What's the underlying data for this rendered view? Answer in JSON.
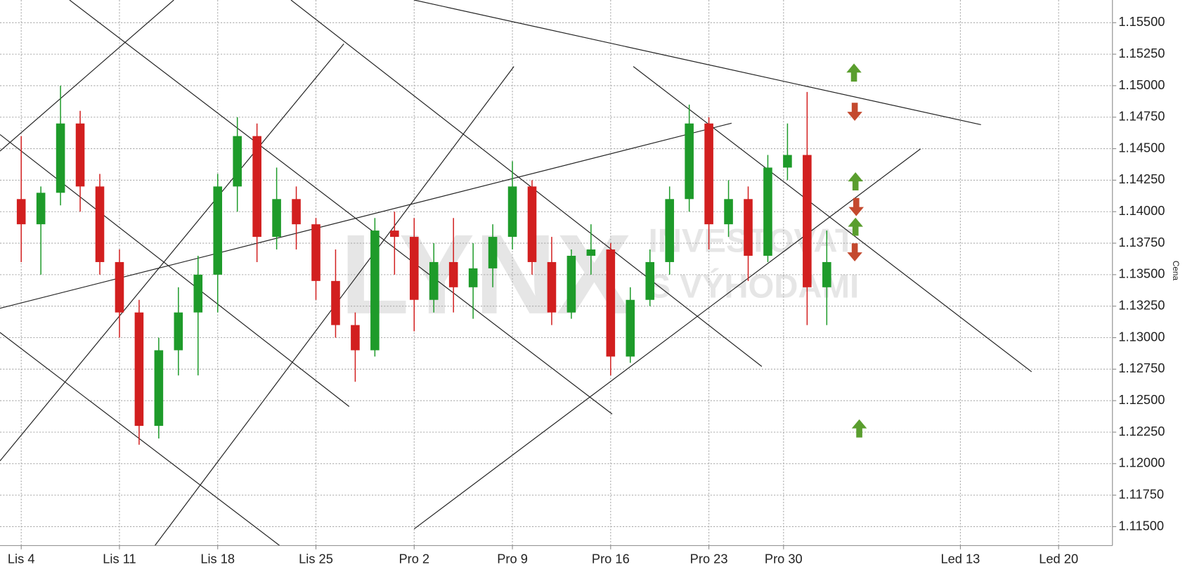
{
  "chart_data": {
    "type": "candlestick",
    "watermark": [
      "LYNX",
      "INVESTOVAT",
      "S VÝHODAMI"
    ],
    "y_label": "Cena",
    "up_color": "#1e9b2a",
    "down_color": "#d21f1f",
    "grid": true,
    "xlim": [
      -1.08,
      55.54
    ],
    "ylim": [
      1.1135,
      1.1568
    ],
    "xticks": [
      {
        "value": 0,
        "label": "Lis 4"
      },
      {
        "value": 5,
        "label": "Lis 11"
      },
      {
        "value": 10,
        "label": "Lis 18"
      },
      {
        "value": 15,
        "label": "Lis 25"
      },
      {
        "value": 20,
        "label": "Pro 2"
      },
      {
        "value": 25,
        "label": "Pro 9"
      },
      {
        "value": 30,
        "label": "Pro 16"
      },
      {
        "value": 35,
        "label": "Pro 23"
      },
      {
        "value": 38.8,
        "label": "Pro 30"
      },
      {
        "value": 47.8,
        "label": "Led 13"
      },
      {
        "value": 52.8,
        "label": "Led 20"
      }
    ],
    "yticks": [
      {
        "value": 1.115,
        "label": "1.11500"
      },
      {
        "value": 1.1175,
        "label": "1.11750"
      },
      {
        "value": 1.12,
        "label": "1.12000"
      },
      {
        "value": 1.1225,
        "label": "1.12250"
      },
      {
        "value": 1.125,
        "label": "1.12500"
      },
      {
        "value": 1.1275,
        "label": "1.12750"
      },
      {
        "value": 1.13,
        "label": "1.13000"
      },
      {
        "value": 1.1325,
        "label": "1.13250"
      },
      {
        "value": 1.135,
        "label": "1.13500"
      },
      {
        "value": 1.1375,
        "label": "1.13750"
      },
      {
        "value": 1.14,
        "label": "1.14000"
      },
      {
        "value": 1.1425,
        "label": "1.14250"
      },
      {
        "value": 1.145,
        "label": "1.14500"
      },
      {
        "value": 1.1475,
        "label": "1.14750"
      },
      {
        "value": 1.15,
        "label": "1.15000"
      },
      {
        "value": 1.1525,
        "label": "1.15250"
      },
      {
        "value": 1.155,
        "label": "1.15500"
      }
    ],
    "x": [
      0,
      1,
      2,
      3,
      4,
      5,
      6,
      7,
      8,
      9,
      10,
      11,
      12,
      13,
      14,
      15,
      16,
      17,
      18,
      19,
      20,
      21,
      22,
      23,
      24,
      25,
      26,
      27,
      28,
      29,
      30,
      31,
      32,
      33,
      34,
      35,
      36,
      37,
      38,
      39,
      40,
      41
    ],
    "open": [
      1.141,
      1.139,
      1.1415,
      1.147,
      1.142,
      1.136,
      1.132,
      1.123,
      1.129,
      1.132,
      1.135,
      1.142,
      1.146,
      1.138,
      1.141,
      1.139,
      1.1345,
      1.131,
      1.129,
      1.1385,
      1.138,
      1.133,
      1.136,
      1.134,
      1.1355,
      1.138,
      1.142,
      1.136,
      1.132,
      1.1365,
      1.137,
      1.1285,
      1.133,
      1.136,
      1.141,
      1.147,
      1.139,
      1.141,
      1.1365,
      1.1435,
      1.1445,
      1.134
    ],
    "high": [
      1.146,
      1.142,
      1.15,
      1.148,
      1.143,
      1.137,
      1.133,
      1.13,
      1.134,
      1.1365,
      1.143,
      1.1475,
      1.147,
      1.1435,
      1.142,
      1.1395,
      1.137,
      1.132,
      1.1395,
      1.14,
      1.1395,
      1.1375,
      1.1395,
      1.1375,
      1.139,
      1.144,
      1.1425,
      1.138,
      1.137,
      1.139,
      1.1375,
      1.134,
      1.137,
      1.142,
      1.1485,
      1.1475,
      1.1425,
      1.142,
      1.1445,
      1.147,
      1.1495,
      1.1385
    ],
    "low": [
      1.136,
      1.135,
      1.1405,
      1.14,
      1.135,
      1.13,
      1.1215,
      1.122,
      1.127,
      1.127,
      1.132,
      1.14,
      1.136,
      1.137,
      1.137,
      1.133,
      1.13,
      1.1265,
      1.1285,
      1.135,
      1.1305,
      1.132,
      1.132,
      1.1315,
      1.134,
      1.137,
      1.135,
      1.131,
      1.1315,
      1.135,
      1.127,
      1.128,
      1.1325,
      1.135,
      1.14,
      1.137,
      1.138,
      1.1345,
      1.136,
      1.1425,
      1.131,
      1.131
    ],
    "close": [
      1.139,
      1.1415,
      1.147,
      1.142,
      1.136,
      1.132,
      1.123,
      1.129,
      1.132,
      1.135,
      1.142,
      1.146,
      1.138,
      1.141,
      1.139,
      1.1345,
      1.131,
      1.129,
      1.1385,
      1.138,
      1.133,
      1.136,
      1.134,
      1.1355,
      1.138,
      1.142,
      1.136,
      1.132,
      1.1365,
      1.137,
      1.1285,
      1.133,
      1.136,
      1.141,
      1.147,
      1.139,
      1.141,
      1.1365,
      1.1435,
      1.1445,
      1.134,
      1.136
    ]
  }
}
